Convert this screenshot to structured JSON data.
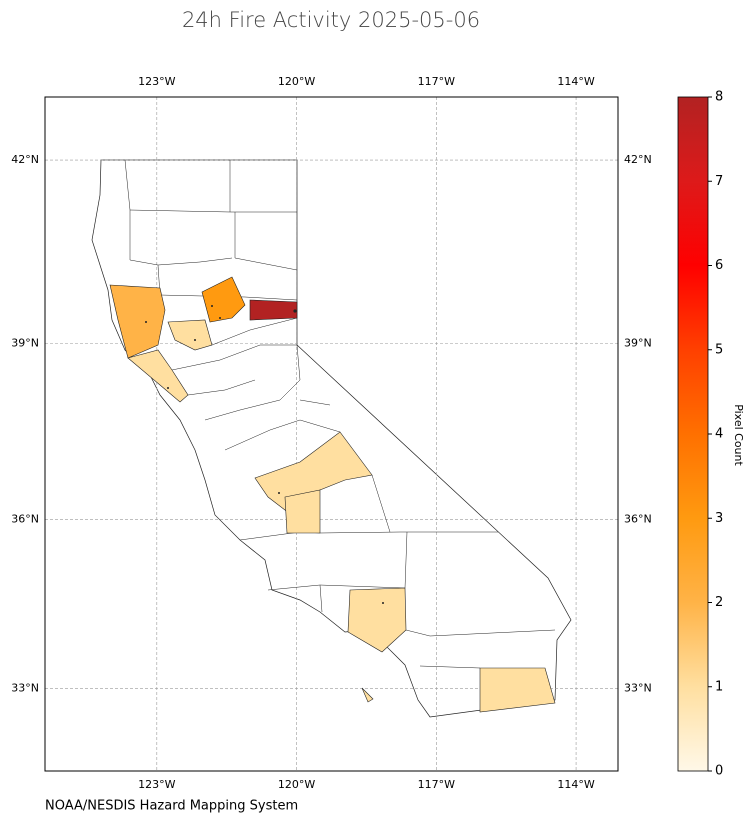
{
  "title": "24h Fire Activity 2025-05-06",
  "footer": "NOAA/NESDIS Hazard Mapping System",
  "map": {
    "projection": "mercator",
    "xlim": [
      -125.4,
      -113.1
    ],
    "ylim": [
      31.5,
      43.0
    ],
    "xticks": [
      {
        "value": -123,
        "label": "123°W"
      },
      {
        "value": -120,
        "label": "120°W"
      },
      {
        "value": -117,
        "label": "117°W"
      },
      {
        "value": -114,
        "label": "114°W"
      }
    ],
    "yticks": [
      {
        "value": 42,
        "label": "42°N"
      },
      {
        "value": 39,
        "label": "39°N"
      },
      {
        "value": 36,
        "label": "36°N"
      },
      {
        "value": 33,
        "label": "33°N"
      }
    ],
    "grid": true,
    "region_values": [
      2,
      1,
      1,
      3,
      8,
      1,
      1,
      1,
      1,
      1
    ]
  },
  "colorbar": {
    "label": "Pixel Count",
    "lim": [
      0,
      8
    ],
    "ticks": [
      0,
      1,
      2,
      3,
      4,
      5,
      6,
      7,
      8
    ],
    "colors": [
      "#fff8e8",
      "#ffdfa0",
      "#ffb347",
      "#ff9a10",
      "#ff7000",
      "#ff4000",
      "#ff0000",
      "#dd1a1a",
      "#b22222"
    ]
  }
}
